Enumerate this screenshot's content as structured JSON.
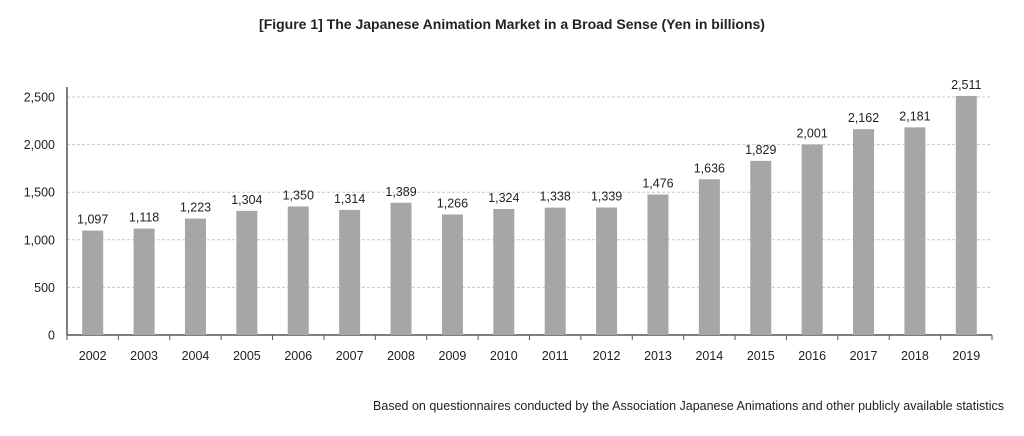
{
  "chart_data": {
    "type": "bar",
    "title": "[Figure 1] The Japanese Animation Market in a Broad Sense (Yen in billions)",
    "xlabel": "",
    "ylabel": "",
    "categories": [
      "2002",
      "2003",
      "2004",
      "2005",
      "2006",
      "2007",
      "2008",
      "2009",
      "2010",
      "2011",
      "2012",
      "2013",
      "2014",
      "2015",
      "2016",
      "2017",
      "2018",
      "2019"
    ],
    "values": [
      1097,
      1118,
      1223,
      1304,
      1350,
      1314,
      1389,
      1266,
      1324,
      1338,
      1339,
      1476,
      1636,
      1829,
      2001,
      2162,
      2181,
      2511
    ],
    "data_labels": [
      "1,097",
      "1,118",
      "1,223",
      "1,304",
      "1,350",
      "1,314",
      "1,389",
      "1,266",
      "1,324",
      "1,338",
      "1,339",
      "1,476",
      "1,636",
      "1,829",
      "2,001",
      "2,162",
      "2,181",
      "2,511"
    ],
    "ylim": [
      0,
      2500
    ],
    "yticks": [
      0,
      500,
      1000,
      1500,
      2000,
      2500
    ],
    "ytick_labels": [
      "0",
      "500",
      "1,000",
      "1,500",
      "2,000",
      "2,500"
    ],
    "grid": true,
    "legend": "none",
    "bar_color": "#a6a6a6",
    "grid_color": "#c8c8c8"
  },
  "note": "Based on questionnaires conducted by the Association Japanese Animations and other publicly available statistics"
}
